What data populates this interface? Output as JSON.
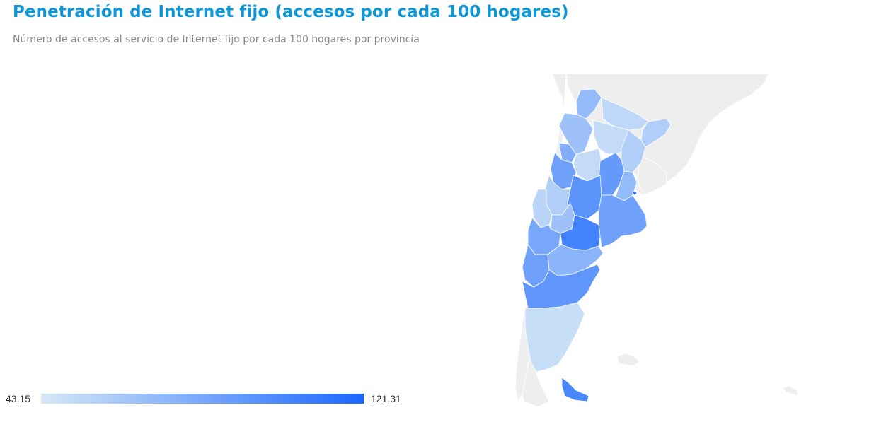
{
  "title": "Penetración de Internet fijo (accesos por cada 100 hogares)",
  "subtitle": "Número de accesos al servicio de Internet fijo por cada 100 hogares por provincia",
  "legend": {
    "min_label": "43,15",
    "max_label": "121,31",
    "min": 43.15,
    "max": 121.31,
    "color_min": "#d6e8f6",
    "color_max": "#1a66ff"
  },
  "colors": {
    "background_land": "#eeeeee",
    "land_border": "#ffffff",
    "title": "#0f96d6"
  },
  "provinces": [
    {
      "id": "jujuy",
      "level": 0.35
    },
    {
      "id": "salta",
      "level": 0.3
    },
    {
      "id": "formosa",
      "level": 0.12
    },
    {
      "id": "chaco",
      "level": 0.1
    },
    {
      "id": "misiones",
      "level": 0.2
    },
    {
      "id": "tucuman",
      "level": 0.45
    },
    {
      "id": "catamarca",
      "level": 0.55
    },
    {
      "id": "santiago",
      "level": 0.1
    },
    {
      "id": "corrientes",
      "level": 0.2
    },
    {
      "id": "la-rioja",
      "level": 0.2
    },
    {
      "id": "santa-fe",
      "level": 0.6
    },
    {
      "id": "entre-rios",
      "level": 0.35
    },
    {
      "id": "san-juan",
      "level": 0.15
    },
    {
      "id": "cordoba",
      "level": 0.65
    },
    {
      "id": "san-luis",
      "level": 0.3
    },
    {
      "id": "mendoza",
      "level": 0.5
    },
    {
      "id": "buenos-aires",
      "level": 0.55
    },
    {
      "id": "caba",
      "level": 1.0
    },
    {
      "id": "la-pampa",
      "level": 0.78
    },
    {
      "id": "neuquen",
      "level": 0.55
    },
    {
      "id": "rio-negro",
      "level": 0.4
    },
    {
      "id": "chubut",
      "level": 0.62
    },
    {
      "id": "santa-cruz",
      "level": 0.08
    },
    {
      "id": "tierra-del-fuego",
      "level": 0.75
    }
  ]
}
